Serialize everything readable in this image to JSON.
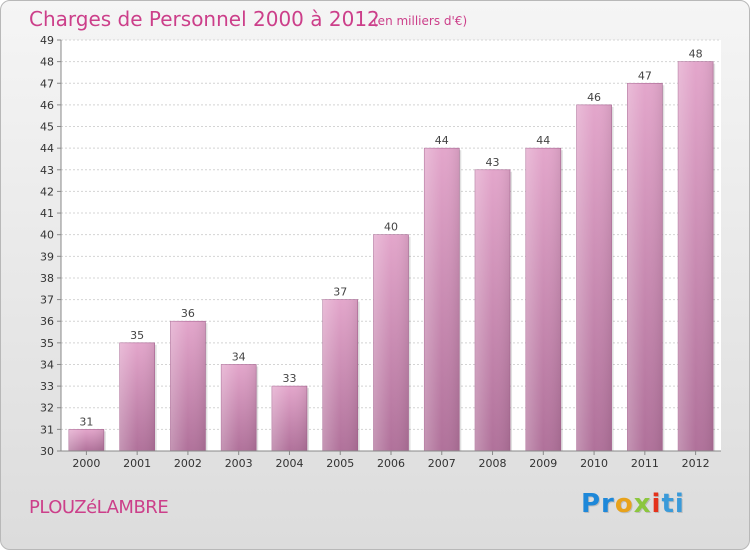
{
  "header": {
    "title": "Charges de Personnel 2000 à 2012",
    "unit_note": "(en milliers d'€)"
  },
  "footer": {
    "town": "PLOUZéLAMBRE",
    "logo_text": "Proxiti",
    "logo_parts": [
      "Pr",
      "o",
      "x",
      "i",
      "ti"
    ]
  },
  "colors": {
    "bar": "#d98cba",
    "bar_dark": "#b26a97",
    "title": "#cc3f8a"
  },
  "chart_data": {
    "type": "bar",
    "title": "Charges de Personnel 2000 à 2012",
    "subtitle": "(en milliers d'€)",
    "xlabel": "",
    "ylabel": "",
    "categories": [
      "2000",
      "2001",
      "2002",
      "2003",
      "2004",
      "2005",
      "2006",
      "2007",
      "2008",
      "2009",
      "2010",
      "2011",
      "2012"
    ],
    "values": [
      31,
      35,
      36,
      34,
      33,
      37,
      40,
      44,
      43,
      44,
      46,
      47,
      48
    ],
    "ylim": [
      30,
      49
    ],
    "yticks": [
      30,
      31,
      32,
      33,
      34,
      35,
      36,
      37,
      38,
      39,
      40,
      41,
      42,
      43,
      44,
      45,
      46,
      47,
      48,
      49
    ],
    "grid": true,
    "legend": "none"
  }
}
